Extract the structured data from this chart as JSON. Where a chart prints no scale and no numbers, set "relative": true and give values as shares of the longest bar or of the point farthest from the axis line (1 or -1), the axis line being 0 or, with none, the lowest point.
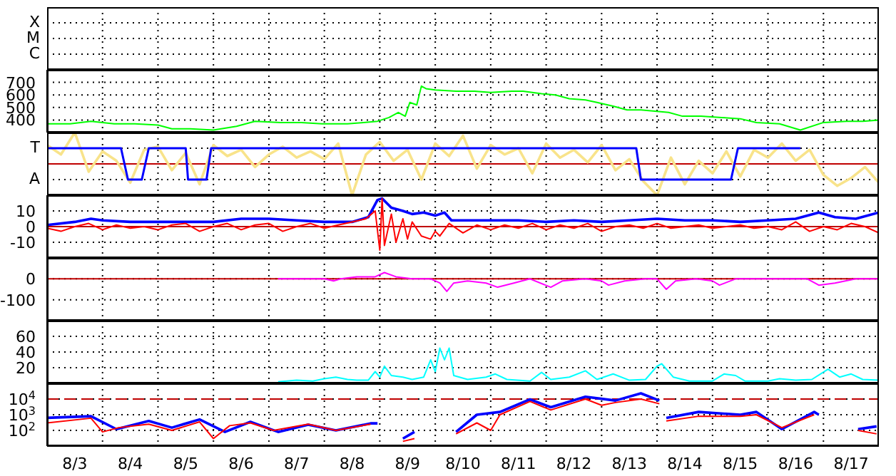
{
  "chart_data": [
    {
      "type": "other",
      "annotations": [
        "X",
        "M",
        "C"
      ]
    },
    {
      "type": "line",
      "xlim": [
        "--08-03",
        "--08-18"
      ],
      "xticks": [
        {
          "value": "--08-03T12:00",
          "label": "8/3"
        },
        {
          "value": "--08-04",
          "label": null
        },
        {
          "value": "--08-04T12:00",
          "label": "8/4"
        },
        {
          "value": "--08-05",
          "label": null
        },
        {
          "value": "--08-05T12:00",
          "label": "8/5"
        },
        {
          "value": "--08-06",
          "label": null
        },
        {
          "value": "--08-06T12:00",
          "label": "8/6"
        },
        {
          "value": "--08-07",
          "label": null
        },
        {
          "value": "--08-07T12:00",
          "label": "8/7"
        },
        {
          "value": "--08-08",
          "label": null
        },
        {
          "value": "--08-08T12:00",
          "label": "8/8"
        },
        {
          "value": "--08-09",
          "label": null
        },
        {
          "value": "--08-09T12:00",
          "label": "8/9"
        },
        {
          "value": "--08-10",
          "label": null
        },
        {
          "value": "--08-10T12:00",
          "label": "8/10"
        },
        {
          "value": "--08-11",
          "label": null
        },
        {
          "value": "--08-11T12:00",
          "label": "8/11"
        },
        {
          "value": "--08-12",
          "label": null
        },
        {
          "value": "--08-12T12:00",
          "label": "8/12"
        },
        {
          "value": "--08-13",
          "label": null
        },
        {
          "value": "--08-13T12:00",
          "label": "8/13"
        },
        {
          "value": "--08-14",
          "label": null
        },
        {
          "value": "--08-14T12:00",
          "label": "8/14"
        },
        {
          "value": "--08-15",
          "label": null
        },
        {
          "value": "--08-15T12:00",
          "label": "8/15"
        },
        {
          "value": "--08-16",
          "label": null
        },
        {
          "value": "--08-16T12:00",
          "label": "8/16"
        },
        {
          "value": "--08-17",
          "label": null
        },
        {
          "value": "--08-17T12:00",
          "label": "8/17"
        }
      ],
      "ylim": [
        300,
        800
      ],
      "yticks": [
        400,
        500,
        600,
        700
      ],
      "grid": true,
      "tick_labels": "y",
      "series": [
        {
          "color": "#00ff00",
          "x": [
            "--08-03T00:00",
            "--08-03T10:00",
            "--08-03T19:00",
            "--08-04T05:00",
            "--08-04T14:00",
            "--08-05T00:00",
            "--08-05T06:00",
            "--08-05T14:00",
            "--08-06T00:00",
            "--08-06T10:00",
            "--08-06T18:00",
            "--08-07T05:00",
            "--08-07T14:00",
            "--08-07T23:00",
            "--08-08T10:00",
            "--08-08T17:00",
            "--08-08T23:00",
            "--08-09T04:00",
            "--08-09T08:00",
            "--08-09T11:00",
            "--08-09T13:00",
            "--08-09T16:00",
            "--08-09T18:00",
            "--08-09T20:00",
            "--08-10T00:00",
            "--08-10T09:00",
            "--08-10T17:00",
            "--08-11T00:00",
            "--08-11T09:00",
            "--08-11T14:00",
            "--08-11T22:00",
            "--08-12T04:00",
            "--08-12T10:00",
            "--08-12T17:00",
            "--08-12T22:00",
            "--08-13T05:00",
            "--08-13T11:00",
            "--08-13T17:00",
            "--08-13T23:00",
            "--08-14T05:00",
            "--08-14T11:00",
            "--08-14T19:00",
            "--08-15T04:00",
            "--08-15T12:00",
            "--08-15T19:00",
            "--08-16T05:00",
            "--08-16T14:00",
            "--08-17T00:00",
            "--08-17T10:00",
            "--08-17T17:00",
            "--08-18T00:00"
          ],
          "values": [
            370,
            370,
            390,
            370,
            370,
            360,
            330,
            330,
            320,
            350,
            390,
            380,
            380,
            370,
            370,
            380,
            390,
            420,
            460,
            430,
            540,
            520,
            670,
            650,
            640,
            630,
            630,
            620,
            630,
            630,
            610,
            600,
            570,
            560,
            540,
            510,
            480,
            480,
            470,
            460,
            430,
            430,
            420,
            410,
            380,
            370,
            320,
            380,
            390,
            390,
            400
          ]
        }
      ]
    },
    {
      "type": "line",
      "relative": true,
      "xlim": [
        "--08-03",
        "--08-18"
      ],
      "xticks": [
        {
          "value": "--08-03T12:00",
          "label": "8/3"
        },
        {
          "value": "--08-04",
          "label": null
        },
        {
          "value": "--08-04T12:00",
          "label": "8/4"
        },
        {
          "value": "--08-05",
          "label": null
        },
        {
          "value": "--08-05T12:00",
          "label": "8/5"
        },
        {
          "value": "--08-06",
          "label": null
        },
        {
          "value": "--08-06T12:00",
          "label": "8/6"
        },
        {
          "value": "--08-07",
          "label": null
        },
        {
          "value": "--08-07T12:00",
          "label": "8/7"
        },
        {
          "value": "--08-08",
          "label": null
        },
        {
          "value": "--08-08T12:00",
          "label": "8/8"
        },
        {
          "value": "--08-09",
          "label": null
        },
        {
          "value": "--08-09T12:00",
          "label": "8/9"
        },
        {
          "value": "--08-10",
          "label": null
        },
        {
          "value": "--08-10T12:00",
          "label": "8/10"
        },
        {
          "value": "--08-11",
          "label": null
        },
        {
          "value": "--08-11T12:00",
          "label": "8/11"
        },
        {
          "value": "--08-12",
          "label": null
        },
        {
          "value": "--08-12T12:00",
          "label": "8/12"
        },
        {
          "value": "--08-13",
          "label": null
        },
        {
          "value": "--08-13T12:00",
          "label": "8/13"
        },
        {
          "value": "--08-14",
          "label": null
        },
        {
          "value": "--08-14T12:00",
          "label": "8/14"
        },
        {
          "value": "--08-15",
          "label": null
        },
        {
          "value": "--08-15T12:00",
          "label": "8/15"
        },
        {
          "value": "--08-16",
          "label": null
        },
        {
          "value": "--08-16T12:00",
          "label": "8/16"
        },
        {
          "value": "--08-17",
          "label": null
        },
        {
          "value": "--08-17T12:00",
          "label": "8/17"
        }
      ],
      "grid": true,
      "tick_labels": false,
      "annotations": [
        "T",
        "A"
      ],
      "ref_lines": [
        {
          "axis": "y",
          "value": 0,
          "label": null,
          "color": "#c00000"
        }
      ],
      "series": [
        {
          "color": "#f8e38a",
          "x": [
            "--08-03T00:00",
            "--08-03T06:00",
            "--08-03T12:00",
            "--08-03T18:00",
            "--08-04T00:00",
            "--08-04T06:00",
            "--08-04T12:00",
            "--08-04T18:00",
            "--08-05T00:00",
            "--08-05T06:00",
            "--08-05T12:00",
            "--08-05T18:00",
            "--08-06T00:00",
            "--08-06T06:00",
            "--08-06T12:00",
            "--08-06T18:00",
            "--08-07T00:00",
            "--08-07T06:00",
            "--08-07T12:00",
            "--08-07T18:00",
            "--08-08T00:00",
            "--08-08T06:00",
            "--08-08T12:00",
            "--08-08T18:00",
            "--08-09T00:00",
            "--08-09T06:00",
            "--08-09T12:00",
            "--08-09T18:00",
            "--08-10T00:00",
            "--08-10T06:00",
            "--08-10T12:00",
            "--08-10T18:00",
            "--08-11T00:00",
            "--08-11T06:00",
            "--08-11T12:00",
            "--08-11T18:00",
            "--08-12T00:00",
            "--08-12T06:00",
            "--08-12T12:00",
            "--08-12T18:00",
            "--08-13T00:00",
            "--08-13T06:00",
            "--08-13T12:00",
            "--08-13T18:00",
            "--08-14T00:00",
            "--08-14T06:00",
            "--08-14T12:00",
            "--08-14T18:00",
            "--08-15T00:00",
            "--08-15T06:00",
            "--08-15T12:00",
            "--08-15T18:00",
            "--08-16T00:00",
            "--08-16T06:00",
            "--08-16T12:00",
            "--08-16T18:00",
            "--08-17T00:00",
            "--08-17T06:00",
            "--08-17T12:00",
            "--08-17T18:00",
            "--08-18T00:00"
          ],
          "values": [
            0.6,
            0.3,
            1,
            -0.25,
            0.4,
            0.1,
            -0.6,
            0.45,
            0.55,
            -0.2,
            0.35,
            -0.65,
            0.6,
            0.25,
            0.45,
            -0.1,
            0.3,
            0.55,
            0.2,
            0.4,
            0.15,
            0.65,
            -1,
            0.3,
            0.7,
            0.1,
            0.45,
            -0.5,
            0.65,
            0.25,
            0.9,
            -0.15,
            0.6,
            0.3,
            0.5,
            -0.3,
            0.65,
            0.2,
            0.45,
            0.05,
            0.6,
            -0.2,
            0.15,
            -0.55,
            -1,
            0.2,
            -0.65,
            0.1,
            -0.3,
            0.4,
            -0.4,
            0.45,
            0.2,
            0.65,
            0.1,
            0.45,
            -0.35,
            -0.7,
            -0.45,
            -0.1,
            -0.6
          ]
        },
        {
          "color": "#0000ff",
          "x": [
            "--08-03T00:00",
            "--08-04T08:00",
            "--08-04T11:00",
            "--08-04T17:00",
            "--08-04T20:00",
            "--08-05T12:00",
            "--08-05T13:00",
            "--08-05T21:00",
            "--08-05T23:00",
            "--08-13T15:00",
            "--08-13T17:00",
            "--08-15T08:00",
            "--08-15T11:00",
            "--08-16T14:00"
          ],
          "values": [
            0.5,
            0.5,
            -0.5,
            -0.5,
            0.5,
            0.5,
            -0.5,
            -0.5,
            0.5,
            0.5,
            -0.5,
            -0.5,
            0.5,
            0.5
          ]
        }
      ]
    },
    {
      "type": "line",
      "xlim": [
        "--08-03",
        "--08-18"
      ],
      "xticks": [
        {
          "value": "--08-03T12:00",
          "label": "8/3"
        },
        {
          "value": "--08-04",
          "label": null
        },
        {
          "value": "--08-04T12:00",
          "label": "8/4"
        },
        {
          "value": "--08-05",
          "label": null
        },
        {
          "value": "--08-05T12:00",
          "label": "8/5"
        },
        {
          "value": "--08-06",
          "label": null
        },
        {
          "value": "--08-06T12:00",
          "label": "8/6"
        },
        {
          "value": "--08-07",
          "label": null
        },
        {
          "value": "--08-07T12:00",
          "label": "8/7"
        },
        {
          "value": "--08-08",
          "label": null
        },
        {
          "value": "--08-08T12:00",
          "label": "8/8"
        },
        {
          "value": "--08-09",
          "label": null
        },
        {
          "value": "--08-09T12:00",
          "label": "8/9"
        },
        {
          "value": "--08-10",
          "label": null
        },
        {
          "value": "--08-10T12:00",
          "label": "8/10"
        },
        {
          "value": "--08-11",
          "label": null
        },
        {
          "value": "--08-11T12:00",
          "label": "8/11"
        },
        {
          "value": "--08-12",
          "label": null
        },
        {
          "value": "--08-12T12:00",
          "label": "8/12"
        },
        {
          "value": "--08-13",
          "label": null
        },
        {
          "value": "--08-13T12:00",
          "label": "8/13"
        },
        {
          "value": "--08-14",
          "label": null
        },
        {
          "value": "--08-14T12:00",
          "label": "8/14"
        },
        {
          "value": "--08-15",
          "label": null
        },
        {
          "value": "--08-15T12:00",
          "label": "8/15"
        },
        {
          "value": "--08-16",
          "label": null
        },
        {
          "value": "--08-16T12:00",
          "label": "8/16"
        },
        {
          "value": "--08-17",
          "label": null
        },
        {
          "value": "--08-17T12:00",
          "label": "8/17"
        }
      ],
      "ylim": [
        -20,
        20
      ],
      "yticks": [
        -10,
        0,
        10
      ],
      "grid": true,
      "tick_labels": "y",
      "ref_lines": [
        {
          "axis": "y",
          "value": 0,
          "label": null,
          "color": "#c00000"
        }
      ],
      "series": [
        {
          "color": "#0000ff",
          "x": [
            "--08-03T00:00",
            "--08-03T12:00",
            "--08-03T19:00",
            "--08-04T00:00",
            "--08-04T12:00",
            "--08-05T00:00",
            "--08-05T12:00",
            "--08-06T00:00",
            "--08-06T12:00",
            "--08-07T00:00",
            "--08-07T12:00",
            "--08-08T00:00",
            "--08-08T12:00",
            "--08-08T19:00",
            "--08-08T23:00",
            "--08-09T01:00",
            "--08-09T05:00",
            "--08-09T10:00",
            "--08-09T14:00",
            "--08-09T19:00",
            "--08-10T00:00",
            "--08-10T04:00",
            "--08-10T07:00",
            "--08-10T14:00",
            "--08-11T00:00",
            "--08-11T12:00",
            "--08-12T00:00",
            "--08-12T12:00",
            "--08-13T00:00",
            "--08-13T12:00",
            "--08-14T00:00",
            "--08-14T12:00",
            "--08-15T00:00",
            "--08-15T12:00",
            "--08-16T00:00",
            "--08-16T12:00",
            "--08-16T22:00",
            "--08-17T05:00",
            "--08-17T14:00",
            "--08-18T00:00"
          ],
          "values": [
            1,
            3,
            5,
            4,
            3,
            3,
            3,
            3,
            5,
            5,
            4,
            3,
            3,
            6,
            17,
            18,
            12,
            10,
            8,
            9,
            7,
            9,
            4,
            4,
            4,
            4,
            3,
            4,
            3,
            4,
            5,
            4,
            4,
            3,
            4,
            5,
            9,
            6,
            5,
            9
          ]
        },
        {
          "color": "#ff0000",
          "x": [
            "--08-03T00:00",
            "--08-03T06:00",
            "--08-03T12:00",
            "--08-03T18:00",
            "--08-04T00:00",
            "--08-04T06:00",
            "--08-04T12:00",
            "--08-04T18:00",
            "--08-05T00:00",
            "--08-05T06:00",
            "--08-05T12:00",
            "--08-05T18:00",
            "--08-06T00:00",
            "--08-06T06:00",
            "--08-06T12:00",
            "--08-06T18:00",
            "--08-07T00:00",
            "--08-07T06:00",
            "--08-07T12:00",
            "--08-07T18:00",
            "--08-08T00:00",
            "--08-08T06:00",
            "--08-08T12:00",
            "--08-08T18:00",
            "--08-08T22:00",
            "--08-09T00:00",
            "--08-09T01:00",
            "--08-09T02:00",
            "--08-09T05:00",
            "--08-09T07:00",
            "--08-09T10:00",
            "--08-09T12:00",
            "--08-09T14:00",
            "--08-09T18:00",
            "--08-09T22:00",
            "--08-10T00:00",
            "--08-10T02:00",
            "--08-10T06:00",
            "--08-10T12:00",
            "--08-10T18:00",
            "--08-11T00:00",
            "--08-11T06:00",
            "--08-11T12:00",
            "--08-11T18:00",
            "--08-12T00:00",
            "--08-12T06:00",
            "--08-12T12:00",
            "--08-12T18:00",
            "--08-13T00:00",
            "--08-13T06:00",
            "--08-13T12:00",
            "--08-13T18:00",
            "--08-14T00:00",
            "--08-14T06:00",
            "--08-14T12:00",
            "--08-14T18:00",
            "--08-15T00:00",
            "--08-15T06:00",
            "--08-15T12:00",
            "--08-15T18:00",
            "--08-16T00:00",
            "--08-16T06:00",
            "--08-16T12:00",
            "--08-16T18:00",
            "--08-17T00:00",
            "--08-17T06:00",
            "--08-17T12:00",
            "--08-17T18:00",
            "--08-18T00:00"
          ],
          "values": [
            -1,
            -3,
            0,
            2,
            -2,
            1,
            -1,
            0,
            -2,
            1,
            2,
            -3,
            0,
            2,
            -2,
            1,
            2,
            -3,
            0,
            2,
            -1,
            1,
            3,
            5,
            10,
            -15,
            18,
            -12,
            8,
            -10,
            5,
            -8,
            3,
            -6,
            -8,
            -3,
            -6,
            2,
            -4,
            1,
            -2,
            1,
            -1,
            2,
            -2,
            1,
            -1,
            2,
            -3,
            0,
            1,
            -1,
            2,
            -1,
            0,
            1,
            -1,
            0,
            1,
            -1,
            0,
            -2,
            3,
            -3,
            0,
            -2,
            2,
            0,
            -4
          ]
        }
      ]
    },
    {
      "type": "line",
      "xlim": [
        "--08-03",
        "--08-18"
      ],
      "xticks": [
        {
          "value": "--08-03T12:00",
          "label": "8/3"
        },
        {
          "value": "--08-04",
          "label": null
        },
        {
          "value": "--08-04T12:00",
          "label": "8/4"
        },
        {
          "value": "--08-05",
          "label": null
        },
        {
          "value": "--08-05T12:00",
          "label": "8/5"
        },
        {
          "value": "--08-06",
          "label": null
        },
        {
          "value": "--08-06T12:00",
          "label": "8/6"
        },
        {
          "value": "--08-07",
          "label": null
        },
        {
          "value": "--08-07T12:00",
          "label": "8/7"
        },
        {
          "value": "--08-08",
          "label": null
        },
        {
          "value": "--08-08T12:00",
          "label": "8/8"
        },
        {
          "value": "--08-09",
          "label": null
        },
        {
          "value": "--08-09T12:00",
          "label": "8/9"
        },
        {
          "value": "--08-10",
          "label": null
        },
        {
          "value": "--08-10T12:00",
          "label": "8/10"
        },
        {
          "value": "--08-11",
          "label": null
        },
        {
          "value": "--08-11T12:00",
          "label": "8/11"
        },
        {
          "value": "--08-12",
          "label": null
        },
        {
          "value": "--08-12T12:00",
          "label": "8/12"
        },
        {
          "value": "--08-13",
          "label": null
        },
        {
          "value": "--08-13T12:00",
          "label": "8/13"
        },
        {
          "value": "--08-14",
          "label": null
        },
        {
          "value": "--08-14T12:00",
          "label": "8/14"
        },
        {
          "value": "--08-15",
          "label": null
        },
        {
          "value": "--08-15T12:00",
          "label": "8/15"
        },
        {
          "value": "--08-16",
          "label": null
        },
        {
          "value": "--08-16T12:00",
          "label": "8/16"
        },
        {
          "value": "--08-17",
          "label": null
        },
        {
          "value": "--08-17T12:00",
          "label": "8/17"
        }
      ],
      "ylim": [
        -200,
        100
      ],
      "yticks": [
        -100,
        0
      ],
      "grid": true,
      "tick_labels": "y",
      "ref_lines": [
        {
          "axis": "y",
          "value": 0,
          "label": null,
          "color": "#c00000"
        }
      ],
      "series": [
        {
          "color": "#ff00ff",
          "x": [
            "--08-07T04:00",
            "--08-07T14:00",
            "--08-08T00:00",
            "--08-08T04:00",
            "--08-08T07:00",
            "--08-08T14:00",
            "--08-08T22:00",
            "--08-09T02:00",
            "--08-09T07:00",
            "--08-09T14:00",
            "--08-09T22:00",
            "--08-10T02:00",
            "--08-10T05:00",
            "--08-10T08:00",
            "--08-10T14:00",
            "--08-10T22:00",
            "--08-11T03:00",
            "--08-11T10:00",
            "--08-11T17:00",
            "--08-12T02:00",
            "--08-12T07:00",
            "--08-12T17:00",
            "--08-13T00:00",
            "--08-13T03:00",
            "--08-13T10:00",
            "--08-13T19:00",
            "--08-14T00:00",
            "--08-14T04:00",
            "--08-14T08:00",
            "--08-14T17:00",
            "--08-15T00:00",
            "--08-15T03:00",
            "--08-15T10:00",
            "--08-15T19:00",
            "--08-16T07:00",
            "--08-16T17:00",
            "--08-16T22:00",
            "--08-17T05:00",
            "--08-17T14:00",
            "--08-18T00:00"
          ],
          "values": [
            0,
            0,
            0,
            -10,
            0,
            10,
            10,
            30,
            10,
            0,
            0,
            -20,
            -60,
            -20,
            -10,
            -20,
            -40,
            -20,
            0,
            -40,
            -10,
            0,
            -10,
            -30,
            -10,
            0,
            0,
            -50,
            -10,
            0,
            -10,
            -30,
            0,
            0,
            0,
            0,
            -30,
            -20,
            0,
            0
          ]
        }
      ]
    },
    {
      "type": "line",
      "xlim": [
        "--08-03",
        "--08-18"
      ],
      "xticks": [
        {
          "value": "--08-03T12:00",
          "label": "8/3"
        },
        {
          "value": "--08-04",
          "label": null
        },
        {
          "value": "--08-04T12:00",
          "label": "8/4"
        },
        {
          "value": "--08-05",
          "label": null
        },
        {
          "value": "--08-05T12:00",
          "label": "8/5"
        },
        {
          "value": "--08-06",
          "label": null
        },
        {
          "value": "--08-06T12:00",
          "label": "8/6"
        },
        {
          "value": "--08-07",
          "label": null
        },
        {
          "value": "--08-07T12:00",
          "label": "8/7"
        },
        {
          "value": "--08-08",
          "label": null
        },
        {
          "value": "--08-08T12:00",
          "label": "8/8"
        },
        {
          "value": "--08-09",
          "label": null
        },
        {
          "value": "--08-09T12:00",
          "label": "8/9"
        },
        {
          "value": "--08-10",
          "label": null
        },
        {
          "value": "--08-10T12:00",
          "label": "8/10"
        },
        {
          "value": "--08-11",
          "label": null
        },
        {
          "value": "--08-11T12:00",
          "label": "8/11"
        },
        {
          "value": "--08-12",
          "label": null
        },
        {
          "value": "--08-12T12:00",
          "label": "8/12"
        },
        {
          "value": "--08-13",
          "label": null
        },
        {
          "value": "--08-13T12:00",
          "label": "8/13"
        },
        {
          "value": "--08-14",
          "label": null
        },
        {
          "value": "--08-14T12:00",
          "label": "8/14"
        },
        {
          "value": "--08-15",
          "label": null
        },
        {
          "value": "--08-15T12:00",
          "label": "8/15"
        },
        {
          "value": "--08-16",
          "label": null
        },
        {
          "value": "--08-16T12:00",
          "label": "8/16"
        },
        {
          "value": "--08-17",
          "label": null
        },
        {
          "value": "--08-17T12:00",
          "label": "8/17"
        }
      ],
      "ylim": [
        0,
        80
      ],
      "yticks": [
        20,
        40,
        60
      ],
      "grid": true,
      "tick_labels": "y",
      "series": [
        {
          "color": "#00ffff",
          "x": [
            "--08-07T04:00",
            "--08-07T12:00",
            "--08-07T19:00",
            "--08-08T00:00",
            "--08-08T05:00",
            "--08-08T10:00",
            "--08-08T14:00",
            "--08-08T19:00",
            "--08-08T22:00",
            "--08-09T00:00",
            "--08-09T02:00",
            "--08-09T05:00",
            "--08-09T10:00",
            "--08-09T14:00",
            "--08-09T19:00",
            "--08-09T22:00",
            "--08-10T00:00",
            "--08-10T02:00",
            "--08-10T04:00",
            "--08-10T06:00",
            "--08-10T08:00",
            "--08-10T14:00",
            "--08-10T22:00",
            "--08-11T02:00",
            "--08-11T07:00",
            "--08-11T17:00",
            "--08-11T22:00",
            "--08-12T02:00",
            "--08-12T10:00",
            "--08-12T17:00",
            "--08-12T22:00",
            "--08-13T05:00",
            "--08-13T12:00",
            "--08-13T19:00",
            "--08-14T00:00",
            "--08-14T02:00",
            "--08-14T07:00",
            "--08-14T14:00",
            "--08-15T00:00",
            "--08-15T05:00",
            "--08-15T10:00",
            "--08-15T14:00",
            "--08-16T00:00",
            "--08-16T05:00",
            "--08-16T12:00",
            "--08-16T19:00",
            "--08-17T02:00",
            "--08-17T07:00",
            "--08-17T12:00",
            "--08-17T17:00",
            "--08-18T00:00"
          ],
          "values": [
            2,
            4,
            3,
            6,
            8,
            5,
            4,
            4,
            15,
            8,
            22,
            10,
            8,
            5,
            8,
            30,
            15,
            45,
            30,
            45,
            10,
            5,
            8,
            12,
            5,
            3,
            14,
            5,
            8,
            16,
            5,
            12,
            4,
            5,
            22,
            25,
            8,
            3,
            3,
            12,
            10,
            3,
            3,
            6,
            4,
            5,
            18,
            8,
            12,
            5,
            4
          ]
        }
      ]
    },
    {
      "type": "line",
      "log": "y",
      "xlim": [
        "--08-03",
        "--08-18"
      ],
      "xticks": [
        {
          "value": "--08-03T12:00",
          "label": "8/3"
        },
        {
          "value": "--08-04",
          "label": null
        },
        {
          "value": "--08-04T12:00",
          "label": "8/4"
        },
        {
          "value": "--08-05",
          "label": null
        },
        {
          "value": "--08-05T12:00",
          "label": "8/5"
        },
        {
          "value": "--08-06",
          "label": null
        },
        {
          "value": "--08-06T12:00",
          "label": "8/6"
        },
        {
          "value": "--08-07",
          "label": null
        },
        {
          "value": "--08-07T12:00",
          "label": "8/7"
        },
        {
          "value": "--08-08",
          "label": null
        },
        {
          "value": "--08-08T12:00",
          "label": "8/8"
        },
        {
          "value": "--08-09",
          "label": null
        },
        {
          "value": "--08-09T12:00",
          "label": "8/9"
        },
        {
          "value": "--08-10",
          "label": null
        },
        {
          "value": "--08-10T12:00",
          "label": "8/10"
        },
        {
          "value": "--08-11",
          "label": null
        },
        {
          "value": "--08-11T12:00",
          "label": "8/11"
        },
        {
          "value": "--08-12",
          "label": null
        },
        {
          "value": "--08-12T12:00",
          "label": "8/12"
        },
        {
          "value": "--08-13",
          "label": null
        },
        {
          "value": "--08-13T12:00",
          "label": "8/13"
        },
        {
          "value": "--08-14",
          "label": null
        },
        {
          "value": "--08-14T12:00",
          "label": "8/14"
        },
        {
          "value": "--08-15",
          "label": null
        },
        {
          "value": "--08-15T12:00",
          "label": "8/15"
        },
        {
          "value": "--08-16",
          "label": null
        },
        {
          "value": "--08-16T12:00",
          "label": "8/16"
        },
        {
          "value": "--08-17",
          "label": null
        },
        {
          "value": "--08-17T12:00",
          "label": "8/17"
        }
      ],
      "ylim": [
        10,
        100000
      ],
      "yticks": [
        {
          "value": 100,
          "label": "10$^{2}$"
        },
        {
          "value": 1000,
          "label": "10$^{3}$"
        },
        {
          "value": 10000,
          "label": "10$^{4}$"
        }
      ],
      "grid": true,
      "ref_lines": [
        {
          "axis": "y",
          "value": 10000,
          "label": null,
          "color": "#c00000",
          "line_style": "dashed"
        }
      ],
      "series": [
        {
          "color": "#0000ff",
          "x": [
            "--08-03T00:00",
            "--08-03T19:00",
            "--08-04T06:00",
            "--08-04T20:00",
            "--08-05T06:00",
            "--08-05T18:00",
            "--08-06T05:00",
            "--08-06T16:00",
            "--08-07T04:00",
            "--08-07T17:00",
            "--08-08T05:00",
            "--08-08T20:00",
            "--08-08T23:00",
            "--08-09T03:00",
            "--08-09T10:00",
            "--08-09T15:00",
            "--08-09T18:00",
            "--08-10T04:00",
            "--08-10T09:00",
            "--08-10T18:00",
            "--08-11T04:00",
            "--08-11T17:00",
            "--08-12T02:00",
            "--08-12T17:00",
            "--08-13T06:00",
            "--08-13T17:00",
            "--08-14T01:00",
            "--08-14T02:00",
            "--08-14T04:00",
            "--08-14T18:00",
            "--08-15T12:00",
            "--08-15T19:00",
            "--08-16T06:00",
            "--08-16T20:00",
            "--08-16T22:00",
            "--08-17T02:00",
            "--08-17T10:00",
            "--08-17T15:00",
            "--08-17T23:00"
          ],
          "values": [
            630,
            800,
            120,
            400,
            150,
            500,
            80,
            350,
            80,
            230,
            100,
            280,
            280,
            null,
            30,
            80,
            null,
            null,
            80,
            1000,
            1500,
            9500,
            3000,
            14000,
            8000,
            23000,
            8000,
            null,
            630,
            1500,
            1000,
            1500,
            120,
            1500,
            1000,
            null,
            null,
            120,
            180
          ]
        },
        {
          "color": "#ff0000",
          "x": [
            "--08-03T00:00",
            "--08-03T19:00",
            "--08-04T00:00",
            "--08-04T07:00",
            "--08-04T20:00",
            "--08-05T06:00",
            "--08-05T18:00",
            "--08-06T00:00",
            "--08-06T07:00",
            "--08-06T16:00",
            "--08-07T02:00",
            "--08-07T17:00",
            "--08-08T05:00",
            "--08-08T20:00",
            "--08-09T00:00",
            "--08-09T10:00",
            "--08-09T15:00",
            "--08-10T04:00",
            "--08-10T09:00",
            "--08-10T18:00",
            "--08-11T00:00",
            "--08-11T04:00",
            "--08-11T17:00",
            "--08-12T02:00",
            "--08-12T17:00",
            "--08-13T00:00",
            "--08-13T06:00",
            "--08-13T17:00",
            "--08-14T01:00",
            "--08-14T02:00",
            "--08-14T04:00",
            "--08-14T18:00",
            "--08-15T12:00",
            "--08-15T19:00",
            "--08-16T06:00",
            "--08-16T20:00",
            "--08-17T00:00",
            "--08-17T10:00",
            "--08-17T15:00",
            "--08-17T23:00"
          ],
          "values": [
            300,
            600,
            80,
            150,
            250,
            100,
            350,
            30,
            200,
            300,
            100,
            250,
            100,
            250,
            null,
            20,
            30,
            null,
            60,
            300,
            100,
            1000,
            7000,
            2000,
            10000,
            4000,
            6000,
            10000,
            5000,
            null,
            400,
            800,
            800,
            1000,
            150,
            1000,
            null,
            null,
            100,
            60
          ]
        }
      ]
    }
  ]
}
